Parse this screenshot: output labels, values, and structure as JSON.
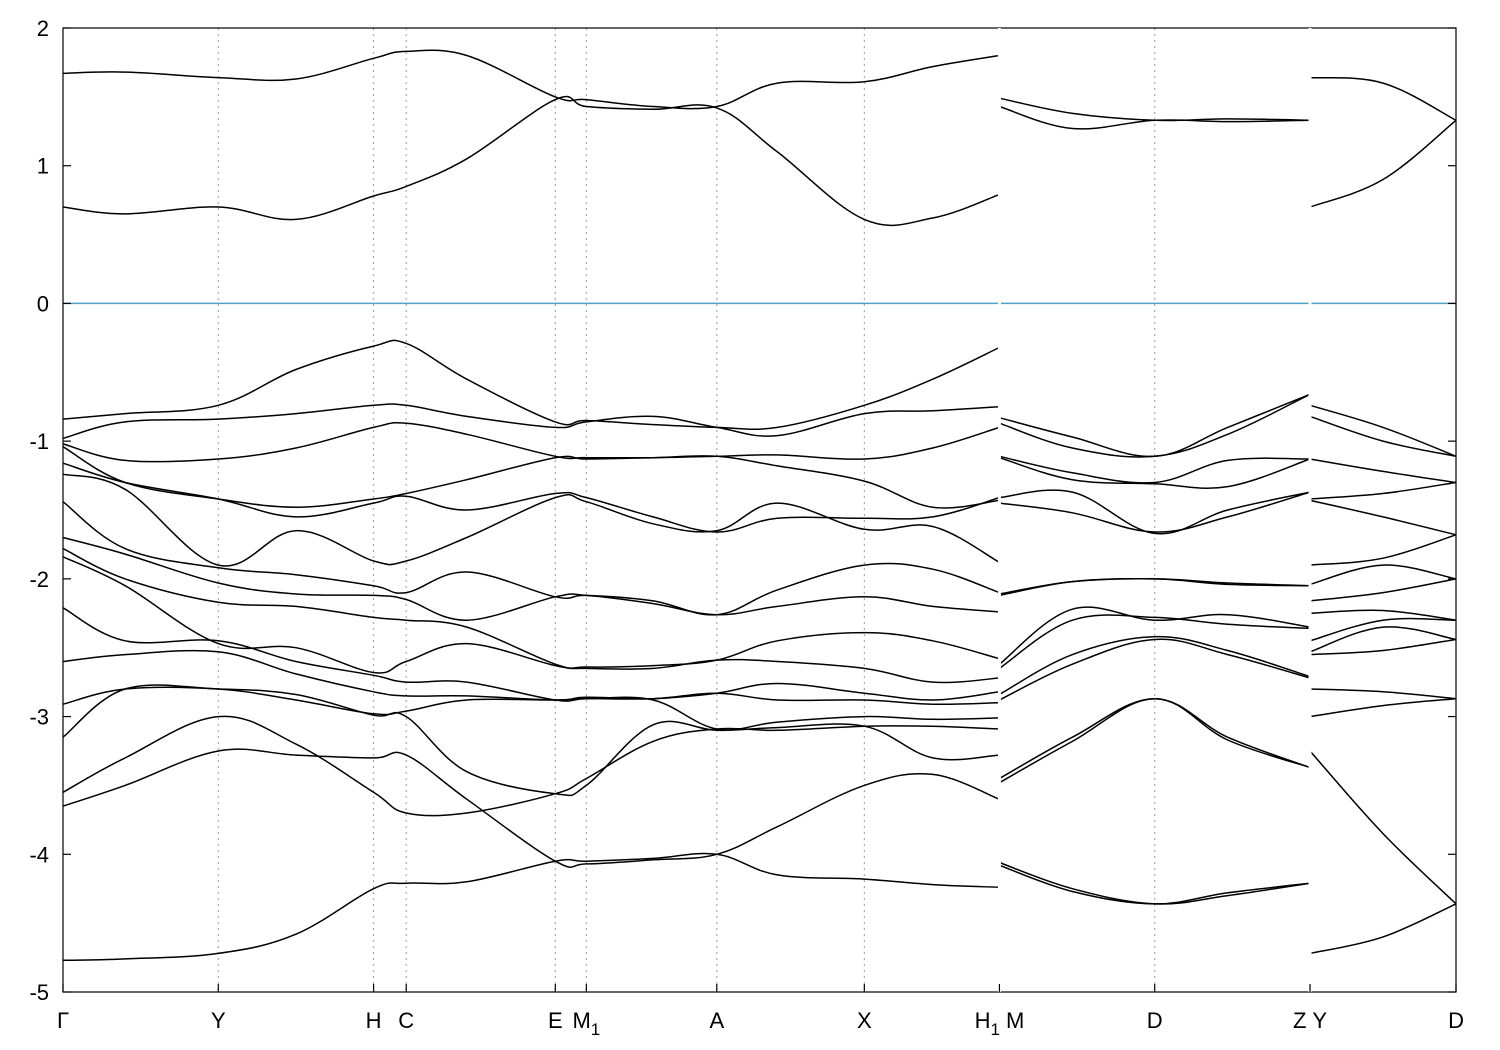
{
  "chart_data": {
    "type": "line",
    "ylim": [
      -5,
      2
    ],
    "yticks": [
      2,
      1,
      0,
      -1,
      -2,
      -3,
      -4,
      -5
    ],
    "fermi_level": 0,
    "fermi_color": "#4aa3c7",
    "grid": "vertical dashed lines at high-symmetry points",
    "kpoints": [
      {
        "label": "Γ",
        "x": 0
      },
      {
        "label": "Y",
        "x": 1
      },
      {
        "label": "H",
        "x": 2
      },
      {
        "label": "C",
        "x": 2.21
      },
      {
        "label": "E",
        "x": 3.17
      },
      {
        "label": "M1",
        "main": "M",
        "sub": "1",
        "x": 3.37
      },
      {
        "label": "A",
        "x": 4.21
      },
      {
        "label": "X",
        "x": 5.16
      },
      {
        "label": "H1 | M",
        "main": "H",
        "sub": "1",
        "after": "M",
        "x": 6.03
      },
      {
        "label": "D",
        "x": 7.03
      },
      {
        "label": "Z | Y",
        "main": "Z",
        "after": "Y",
        "x": 8.03
      },
      {
        "label": "D",
        "x": 8.97
      }
    ],
    "path_breaks": [
      6.03,
      8.03
    ],
    "segments": [
      {
        "x": [
          0,
          0.4,
          1,
          1.5,
          2,
          2.21,
          2.6,
          3.17,
          3.37,
          3.8,
          4.21,
          4.6,
          5.16,
          5.6,
          6.03
        ],
        "series": [
          [
            1.67,
            1.68,
            1.64,
            1.63,
            1.78,
            1.83,
            1.8,
            1.5,
            1.48,
            1.43,
            1.43,
            1.6,
            1.61,
            1.72,
            1.8
          ],
          [
            0.7,
            0.65,
            0.7,
            0.61,
            0.78,
            0.85,
            1.05,
            1.48,
            1.43,
            1.41,
            1.42,
            1.1,
            0.61,
            0.62,
            0.79
          ],
          [
            -0.84,
            -0.8,
            -0.74,
            -0.48,
            -0.31,
            -0.29,
            -0.55,
            -0.86,
            -0.85,
            -0.88,
            -0.9,
            -0.9,
            -0.74,
            -0.55,
            -0.32
          ],
          [
            -0.98,
            -0.86,
            -0.84,
            -0.8,
            -0.74,
            -0.74,
            -0.82,
            -0.9,
            -0.86,
            -0.82,
            -0.9,
            -0.96,
            -0.8,
            -0.78,
            -0.75
          ],
          [
            -1.02,
            -1.14,
            -1.13,
            -1.05,
            -0.9,
            -0.87,
            -0.95,
            -1.11,
            -1.12,
            -1.12,
            -1.11,
            -1.1,
            -1.13,
            -1.05,
            -0.9
          ],
          [
            -1.04,
            -1.3,
            -1.42,
            -1.48,
            -1.42,
            -1.38,
            -1.28,
            -1.12,
            -1.13,
            -1.12,
            -1.11,
            -1.18,
            -1.29,
            -1.48,
            -1.43
          ],
          [
            -1.16,
            -1.3,
            -1.42,
            -1.55,
            -1.45,
            -1.4,
            -1.5,
            -1.38,
            -1.41,
            -1.55,
            -1.66,
            -1.56,
            -1.56,
            -1.55,
            -1.41
          ],
          [
            -1.24,
            -1.35,
            -1.9,
            -1.65,
            -1.87,
            -1.87,
            -1.7,
            -1.41,
            -1.44,
            -1.6,
            -1.65,
            -1.45,
            -1.64,
            -1.62,
            -1.88
          ],
          [
            -1.44,
            -1.78,
            -1.92,
            -1.97,
            -2.05,
            -2.1,
            -1.95,
            -2.13,
            -2.12,
            -2.16,
            -2.26,
            -2.08,
            -1.9,
            -1.93,
            -2.1
          ],
          [
            -1.7,
            -1.82,
            -2.03,
            -2.11,
            -2.12,
            -2.15,
            -2.3,
            -2.13,
            -2.12,
            -2.18,
            -2.26,
            -2.2,
            -2.13,
            -2.2,
            -2.24
          ],
          [
            -1.78,
            -2.0,
            -2.17,
            -2.2,
            -2.28,
            -2.3,
            -2.35,
            -2.62,
            -2.64,
            -2.63,
            -2.59,
            -2.45,
            -2.39,
            -2.45,
            -2.58
          ],
          [
            -1.84,
            -2.05,
            -2.47,
            -2.5,
            -2.68,
            -2.6,
            -2.47,
            -2.63,
            -2.65,
            -2.65,
            -2.59,
            -2.6,
            -2.65,
            -2.75,
            -2.72
          ],
          [
            -2.21,
            -2.45,
            -2.45,
            -2.6,
            -2.7,
            -2.75,
            -2.75,
            -2.88,
            -2.87,
            -2.87,
            -2.83,
            -2.76,
            -2.83,
            -2.88,
            -2.82
          ],
          [
            -2.6,
            -2.55,
            -2.53,
            -2.69,
            -2.82,
            -2.85,
            -2.85,
            -2.88,
            -2.86,
            -2.87,
            -2.83,
            -2.88,
            -2.88,
            -2.91,
            -2.9
          ],
          [
            -2.91,
            -2.8,
            -2.8,
            -2.88,
            -2.98,
            -2.96,
            -2.88,
            -2.88,
            -2.87,
            -2.88,
            -3.09,
            -3.04,
            -3.0,
            -3.02,
            -3.01
          ],
          [
            -3.15,
            -2.8,
            -2.8,
            -2.84,
            -2.99,
            -3.0,
            -3.4,
            -3.56,
            -3.5,
            -3.06,
            -3.1,
            -3.08,
            -3.07,
            -3.3,
            -3.28
          ],
          [
            -3.55,
            -3.3,
            -3.0,
            -3.2,
            -3.55,
            -3.7,
            -3.7,
            -3.56,
            -3.45,
            -3.18,
            -3.09,
            -3.1,
            -3.07,
            -3.07,
            -3.09
          ],
          [
            -3.65,
            -3.5,
            -3.25,
            -3.28,
            -3.3,
            -3.28,
            -3.6,
            -4.05,
            -4.07,
            -4.04,
            -4.0,
            -3.8,
            -3.5,
            -3.42,
            -3.6
          ],
          [
            -4.77,
            -4.76,
            -4.72,
            -4.58,
            -4.25,
            -4.21,
            -4.2,
            -4.05,
            -4.05,
            -4.03,
            -4.0,
            -4.15,
            -4.18,
            -4.22,
            -4.24
          ]
        ]
      },
      {
        "x": [
          6.03,
          6.5,
          7.03,
          7.5,
          8.03
        ],
        "series": [
          [
            1.49,
            1.38,
            1.33,
            1.34,
            1.33
          ],
          [
            1.43,
            1.27,
            1.33,
            1.32,
            1.33
          ],
          [
            -0.83,
            -0.97,
            -1.11,
            -0.9,
            -0.66
          ],
          [
            -0.87,
            -1.05,
            -1.11,
            -0.95,
            -0.66
          ],
          [
            -1.11,
            -1.23,
            -1.3,
            -1.14,
            -1.13
          ],
          [
            -1.12,
            -1.28,
            -1.31,
            -1.33,
            -1.13
          ],
          [
            -1.41,
            -1.37,
            -1.67,
            -1.5,
            -1.37
          ],
          [
            -1.45,
            -1.52,
            -1.66,
            -1.55,
            -1.37
          ],
          [
            -2.12,
            -2.02,
            -2.0,
            -2.03,
            -2.05
          ],
          [
            -2.11,
            -2.02,
            -2.0,
            -2.04,
            -2.05
          ],
          [
            -2.62,
            -2.22,
            -2.3,
            -2.26,
            -2.35
          ],
          [
            -2.65,
            -2.3,
            -2.28,
            -2.33,
            -2.36
          ],
          [
            -2.84,
            -2.55,
            -2.42,
            -2.52,
            -2.71
          ],
          [
            -2.88,
            -2.62,
            -2.44,
            -2.55,
            -2.72
          ],
          [
            -3.45,
            -3.15,
            -2.87,
            -3.15,
            -3.37
          ],
          [
            -3.48,
            -3.18,
            -2.87,
            -3.17,
            -3.37
          ],
          [
            -4.06,
            -4.25,
            -4.36,
            -4.3,
            -4.21
          ],
          [
            -4.08,
            -4.27,
            -4.36,
            -4.28,
            -4.21
          ]
        ]
      },
      {
        "x": [
          8.03,
          8.5,
          8.97
        ],
        "series": [
          [
            1.64,
            1.6,
            1.33
          ],
          [
            0.7,
            0.9,
            1.33
          ],
          [
            -0.74,
            -0.9,
            -1.11
          ],
          [
            -0.82,
            -1.0,
            -1.11
          ],
          [
            -1.13,
            -1.22,
            -1.3
          ],
          [
            -1.42,
            -1.38,
            -1.3
          ],
          [
            -1.43,
            -1.55,
            -1.68
          ],
          [
            -1.9,
            -1.85,
            -1.68
          ],
          [
            -2.04,
            -1.9,
            -2.0
          ],
          [
            -2.16,
            -2.1,
            -2.0
          ],
          [
            -2.25,
            -2.23,
            -2.3
          ],
          [
            -2.45,
            -2.3,
            -2.3
          ],
          [
            -2.53,
            -2.35,
            -2.44
          ],
          [
            -2.55,
            -2.52,
            -2.44
          ],
          [
            -2.8,
            -2.82,
            -2.87
          ],
          [
            -3.0,
            -2.92,
            -2.87
          ],
          [
            -3.25,
            -3.85,
            -4.36
          ],
          [
            -4.72,
            -4.6,
            -4.36
          ]
        ]
      }
    ]
  }
}
